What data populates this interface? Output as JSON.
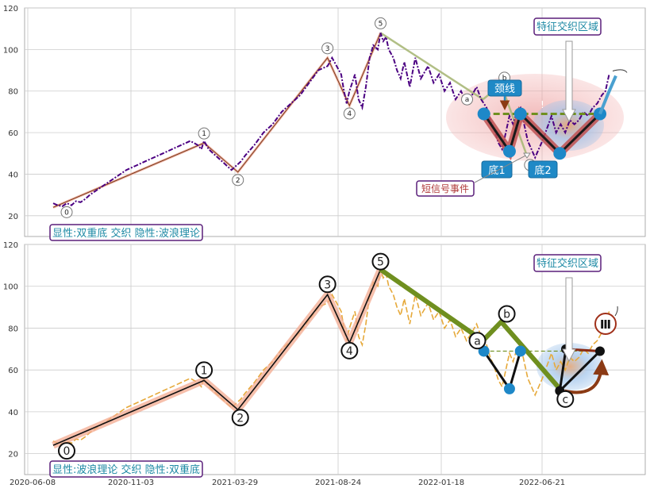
{
  "chart_data": [
    {
      "type": "line",
      "panel": "top",
      "x_tick_labels": [],
      "y_ticks": [
        20,
        40,
        60,
        80,
        100,
        120
      ],
      "ylim": [
        10,
        120
      ],
      "grid": true,
      "price_series": [
        [
          0,
          26
        ],
        [
          5,
          25
        ],
        [
          10,
          24.5
        ],
        [
          15,
          26
        ],
        [
          20,
          25
        ],
        [
          25,
          27
        ],
        [
          30,
          26.5
        ],
        [
          35,
          28
        ],
        [
          40,
          30
        ],
        [
          50,
          33
        ],
        [
          60,
          36
        ],
        [
          70,
          39
        ],
        [
          80,
          42
        ],
        [
          90,
          44
        ],
        [
          100,
          46
        ],
        [
          110,
          48
        ],
        [
          120,
          50
        ],
        [
          130,
          52
        ],
        [
          140,
          54
        ],
        [
          150,
          56
        ],
        [
          158,
          54
        ],
        [
          162,
          52
        ],
        [
          165,
          56
        ],
        [
          170,
          52
        ],
        [
          175,
          50
        ],
        [
          180,
          48
        ],
        [
          185,
          46
        ],
        [
          190,
          44
        ],
        [
          195,
          42
        ],
        [
          200,
          44
        ],
        [
          205,
          46
        ],
        [
          210,
          49
        ],
        [
          220,
          54
        ],
        [
          230,
          60
        ],
        [
          240,
          64
        ],
        [
          250,
          70
        ],
        [
          260,
          74
        ],
        [
          270,
          78
        ],
        [
          280,
          84
        ],
        [
          290,
          90
        ],
        [
          300,
          92
        ],
        [
          305,
          96
        ],
        [
          310,
          92
        ],
        [
          315,
          88
        ],
        [
          318,
          80
        ],
        [
          321,
          74
        ],
        [
          324,
          80
        ],
        [
          327,
          84
        ],
        [
          330,
          88
        ],
        [
          334,
          76
        ],
        [
          338,
          72
        ],
        [
          342,
          82
        ],
        [
          346,
          96
        ],
        [
          350,
          102
        ],
        [
          355,
          100
        ],
        [
          358,
          108
        ],
        [
          361,
          104
        ],
        [
          364,
          106
        ],
        [
          367,
          100
        ],
        [
          372,
          96
        ],
        [
          376,
          90
        ],
        [
          380,
          86
        ],
        [
          384,
          94
        ],
        [
          390,
          82
        ],
        [
          396,
          96
        ],
        [
          402,
          86
        ],
        [
          410,
          92
        ],
        [
          416,
          84
        ],
        [
          422,
          88
        ],
        [
          428,
          80
        ],
        [
          434,
          84
        ],
        [
          440,
          76
        ],
        [
          446,
          80
        ],
        [
          452,
          74
        ],
        [
          458,
          78
        ],
        [
          463,
          82
        ],
        [
          468,
          76
        ],
        [
          474,
          72
        ],
        [
          478,
          66
        ],
        [
          482,
          62
        ],
        [
          487,
          55
        ],
        [
          491,
          52
        ],
        [
          495,
          60
        ],
        [
          499,
          68
        ],
        [
          503,
          64
        ],
        [
          507,
          70
        ],
        [
          511,
          72
        ],
        [
          515,
          64
        ],
        [
          519,
          56
        ],
        [
          523,
          52
        ],
        [
          527,
          48
        ],
        [
          531,
          52
        ],
        [
          535,
          56
        ],
        [
          540,
          62
        ],
        [
          545,
          68
        ],
        [
          550,
          60
        ],
        [
          555,
          64
        ],
        [
          560,
          60
        ],
        [
          565,
          66
        ],
        [
          570,
          64
        ],
        [
          575,
          66
        ],
        [
          580,
          70
        ],
        [
          585,
          68
        ],
        [
          590,
          72
        ],
        [
          595,
          74
        ],
        [
          600,
          78
        ],
        [
          604,
          80
        ],
        [
          608,
          88
        ]
      ],
      "wave_labels": [
        "0",
        "1",
        "2",
        "3",
        "4",
        "5",
        "a",
        "b",
        "c"
      ],
      "wave_points": [
        [
          0,
          24
        ],
        [
          165,
          55
        ],
        [
          202,
          41
        ],
        [
          300,
          96
        ],
        [
          324,
          73
        ],
        [
          358,
          108
        ],
        [
          470,
          76
        ],
        [
          490,
          83
        ],
        [
          518,
          49
        ]
      ],
      "pattern_points": [
        [
          471,
          69
        ],
        [
          499,
          51
        ],
        [
          511,
          69
        ],
        [
          554,
          50
        ],
        [
          598,
          69
        ]
      ],
      "neckline": 69,
      "annotations": {
        "neckline": "颈线",
        "bottom1": "底1",
        "bottom2": "底2",
        "short_signal": "短信号事件",
        "feature_zone": "特征交织区域",
        "caption": "显性:双重底 交织 隐性:波浪理论"
      }
    },
    {
      "type": "line",
      "panel": "bottom",
      "x_tick_labels": [
        "2020-06-08",
        "2020-11-03",
        "2021-03-29",
        "2021-08-24",
        "2022-01-18",
        "2022-06-21"
      ],
      "y_ticks": [
        20,
        40,
        60,
        80,
        100,
        120
      ],
      "ylim": [
        10,
        120
      ],
      "grid": true,
      "price_series": [
        [
          0,
          26
        ],
        [
          5,
          25
        ],
        [
          10,
          24.5
        ],
        [
          15,
          26
        ],
        [
          20,
          25
        ],
        [
          25,
          27
        ],
        [
          30,
          26.5
        ],
        [
          35,
          28
        ],
        [
          40,
          30
        ],
        [
          50,
          33
        ],
        [
          60,
          36
        ],
        [
          70,
          39
        ],
        [
          80,
          42
        ],
        [
          90,
          44
        ],
        [
          100,
          46
        ],
        [
          110,
          48
        ],
        [
          120,
          50
        ],
        [
          130,
          52
        ],
        [
          140,
          54
        ],
        [
          150,
          56
        ],
        [
          158,
          54
        ],
        [
          162,
          52
        ],
        [
          165,
          56
        ],
        [
          170,
          52
        ],
        [
          175,
          50
        ],
        [
          180,
          48
        ],
        [
          185,
          46
        ],
        [
          190,
          44
        ],
        [
          195,
          42
        ],
        [
          200,
          44
        ],
        [
          205,
          46
        ],
        [
          210,
          49
        ],
        [
          220,
          54
        ],
        [
          230,
          60
        ],
        [
          240,
          64
        ],
        [
          250,
          70
        ],
        [
          260,
          74
        ],
        [
          270,
          78
        ],
        [
          280,
          84
        ],
        [
          290,
          90
        ],
        [
          300,
          92
        ],
        [
          305,
          96
        ],
        [
          310,
          92
        ],
        [
          315,
          88
        ],
        [
          318,
          80
        ],
        [
          321,
          74
        ],
        [
          324,
          80
        ],
        [
          327,
          84
        ],
        [
          330,
          88
        ],
        [
          334,
          76
        ],
        [
          338,
          72
        ],
        [
          342,
          82
        ],
        [
          346,
          96
        ],
        [
          350,
          102
        ],
        [
          355,
          100
        ],
        [
          358,
          108
        ],
        [
          361,
          104
        ],
        [
          364,
          106
        ],
        [
          367,
          100
        ],
        [
          372,
          96
        ],
        [
          376,
          90
        ],
        [
          380,
          86
        ],
        [
          384,
          94
        ],
        [
          390,
          82
        ],
        [
          396,
          96
        ],
        [
          402,
          86
        ],
        [
          410,
          92
        ],
        [
          416,
          84
        ],
        [
          422,
          88
        ],
        [
          428,
          80
        ],
        [
          434,
          84
        ],
        [
          440,
          76
        ],
        [
          446,
          80
        ],
        [
          452,
          74
        ],
        [
          458,
          78
        ],
        [
          463,
          82
        ],
        [
          468,
          76
        ],
        [
          474,
          72
        ],
        [
          478,
          66
        ],
        [
          482,
          62
        ],
        [
          487,
          55
        ],
        [
          491,
          52
        ],
        [
          495,
          60
        ],
        [
          499,
          68
        ],
        [
          503,
          64
        ],
        [
          507,
          70
        ],
        [
          511,
          72
        ],
        [
          515,
          64
        ],
        [
          519,
          56
        ],
        [
          523,
          52
        ],
        [
          527,
          48
        ],
        [
          531,
          52
        ],
        [
          535,
          56
        ],
        [
          540,
          62
        ],
        [
          545,
          68
        ],
        [
          550,
          60
        ],
        [
          555,
          64
        ],
        [
          560,
          60
        ],
        [
          565,
          66
        ],
        [
          570,
          64
        ],
        [
          575,
          66
        ],
        [
          580,
          70
        ],
        [
          585,
          68
        ],
        [
          590,
          72
        ],
        [
          595,
          74
        ],
        [
          600,
          78
        ],
        [
          604,
          80
        ],
        [
          608,
          88
        ]
      ],
      "wave_labels": [
        "0",
        "1",
        "2",
        "3",
        "4",
        "5",
        "a",
        "b",
        "c",
        "Ⅲ"
      ],
      "wave_points": [
        [
          0,
          24
        ],
        [
          165,
          55
        ],
        [
          202,
          41
        ],
        [
          300,
          96
        ],
        [
          324,
          73
        ],
        [
          358,
          108
        ],
        [
          470,
          74
        ],
        [
          490,
          83
        ],
        [
          554,
          51
        ]
      ],
      "pattern_points": [
        [
          471,
          69
        ],
        [
          499,
          51
        ],
        [
          511,
          69
        ],
        [
          554,
          50
        ],
        [
          598,
          69
        ]
      ],
      "neckline": 69,
      "annotations": {
        "feature_zone": "特征交织区域",
        "caption": "显性:波浪理论 交织 隐性:双重底"
      }
    }
  ],
  "colors": {
    "price_top": "#4b0082",
    "price_bottom": "#e6a93a",
    "grid": "#cccccc",
    "label_purple": "#6b2a8e",
    "label_teal": "#1e8aa5",
    "pattern_blue": "#1e88c8",
    "wave_green": "#6f8f1f",
    "dark_red": "#8b1a1a"
  }
}
